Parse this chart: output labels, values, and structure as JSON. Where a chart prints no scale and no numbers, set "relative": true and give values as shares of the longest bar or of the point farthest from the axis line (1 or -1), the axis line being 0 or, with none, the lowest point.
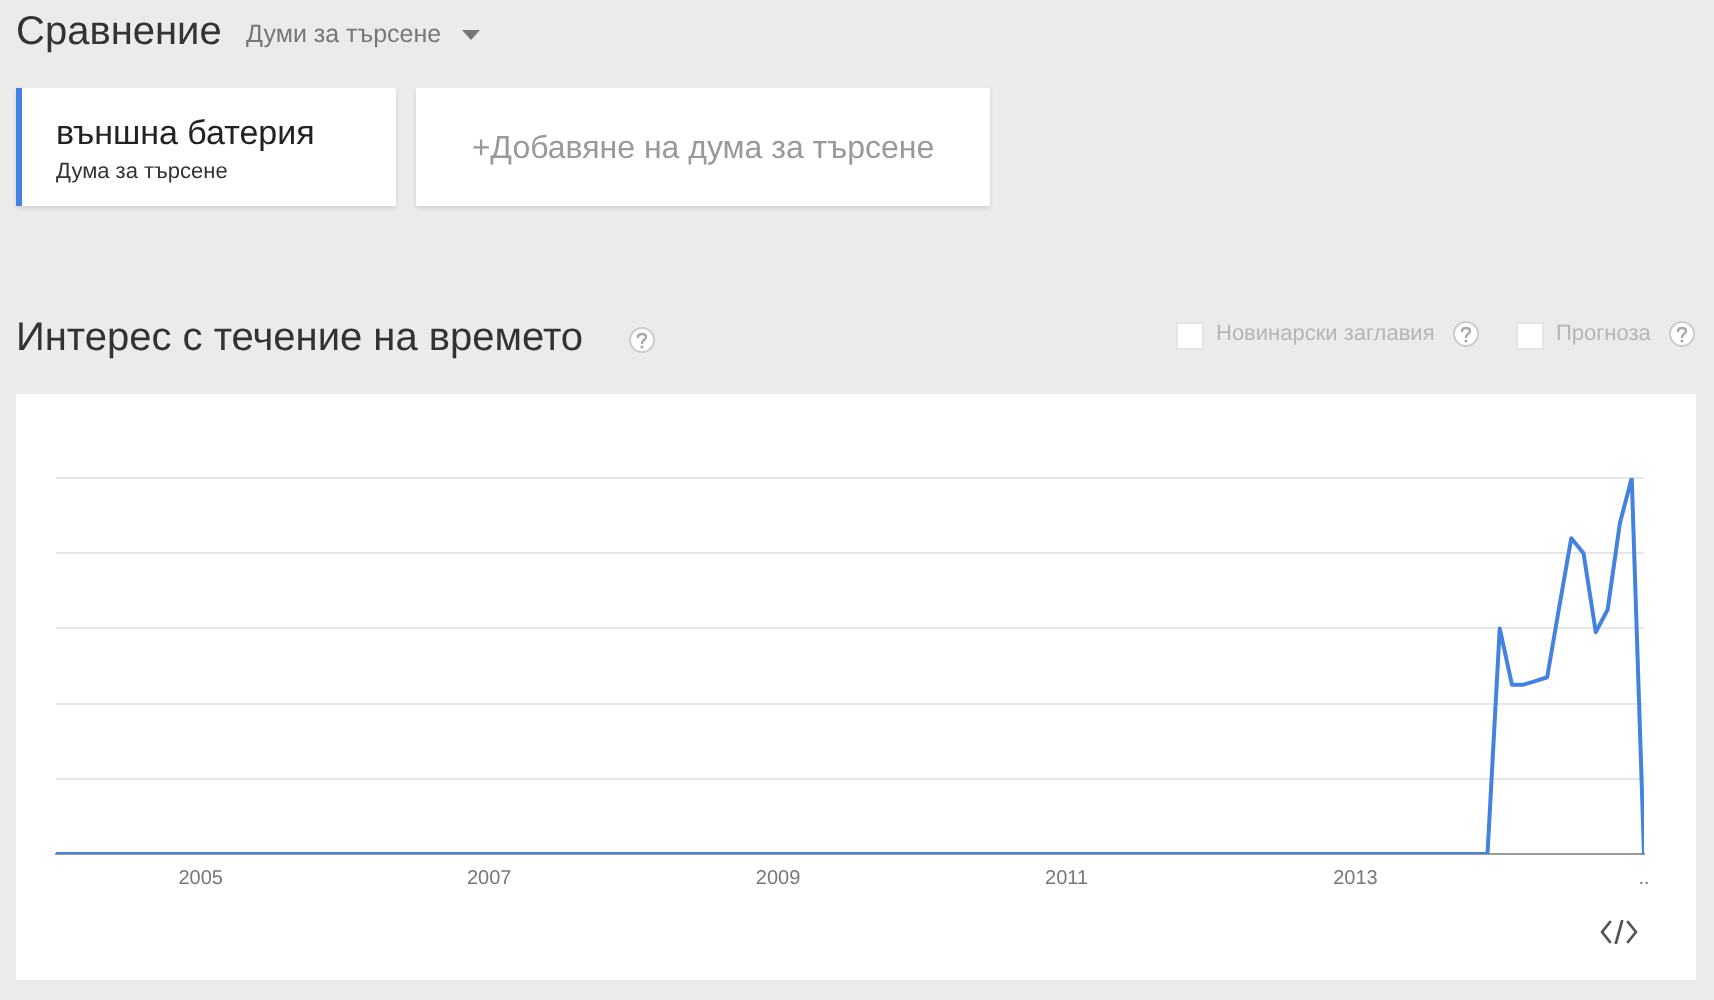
{
  "chart_data": {
    "type": "line",
    "title": "Интерес с течение на времето",
    "annotations": [
      "Сравнение",
      "Думи за търсене",
      "Дума за търсене",
      "+Добавяне на дума за търсене",
      "Новинарски заглавия",
      "Прогноза"
    ],
    "relative": true,
    "xlim": [
      "2004-01",
      "2015-01"
    ],
    "xticks": [
      "2005",
      "2007",
      "2009",
      "2011",
      "2013",
      {
        "value": "2015",
        "label": ".."
      }
    ],
    "series": [
      {
        "name": "външна батерия",
        "color": "#4482e0",
        "x": [
          "2004-01",
          "2013-12",
          "2014-01",
          "2014-02",
          "2014-03",
          "2014-04",
          "2014-05",
          "2014-06",
          "2014-07",
          "2014-08",
          "2014-09",
          "2014-10",
          "2014-11",
          "2014-12",
          "2015-01"
        ],
        "values": [
          0,
          0,
          0.6,
          0.45,
          0.45,
          0.46,
          0.47,
          0.66,
          0.84,
          0.8,
          0.59,
          0.65,
          0.88,
          1,
          0
        ]
      }
    ],
    "grid": "y",
    "legend": "top left",
    "tick_labels": "x"
  }
}
